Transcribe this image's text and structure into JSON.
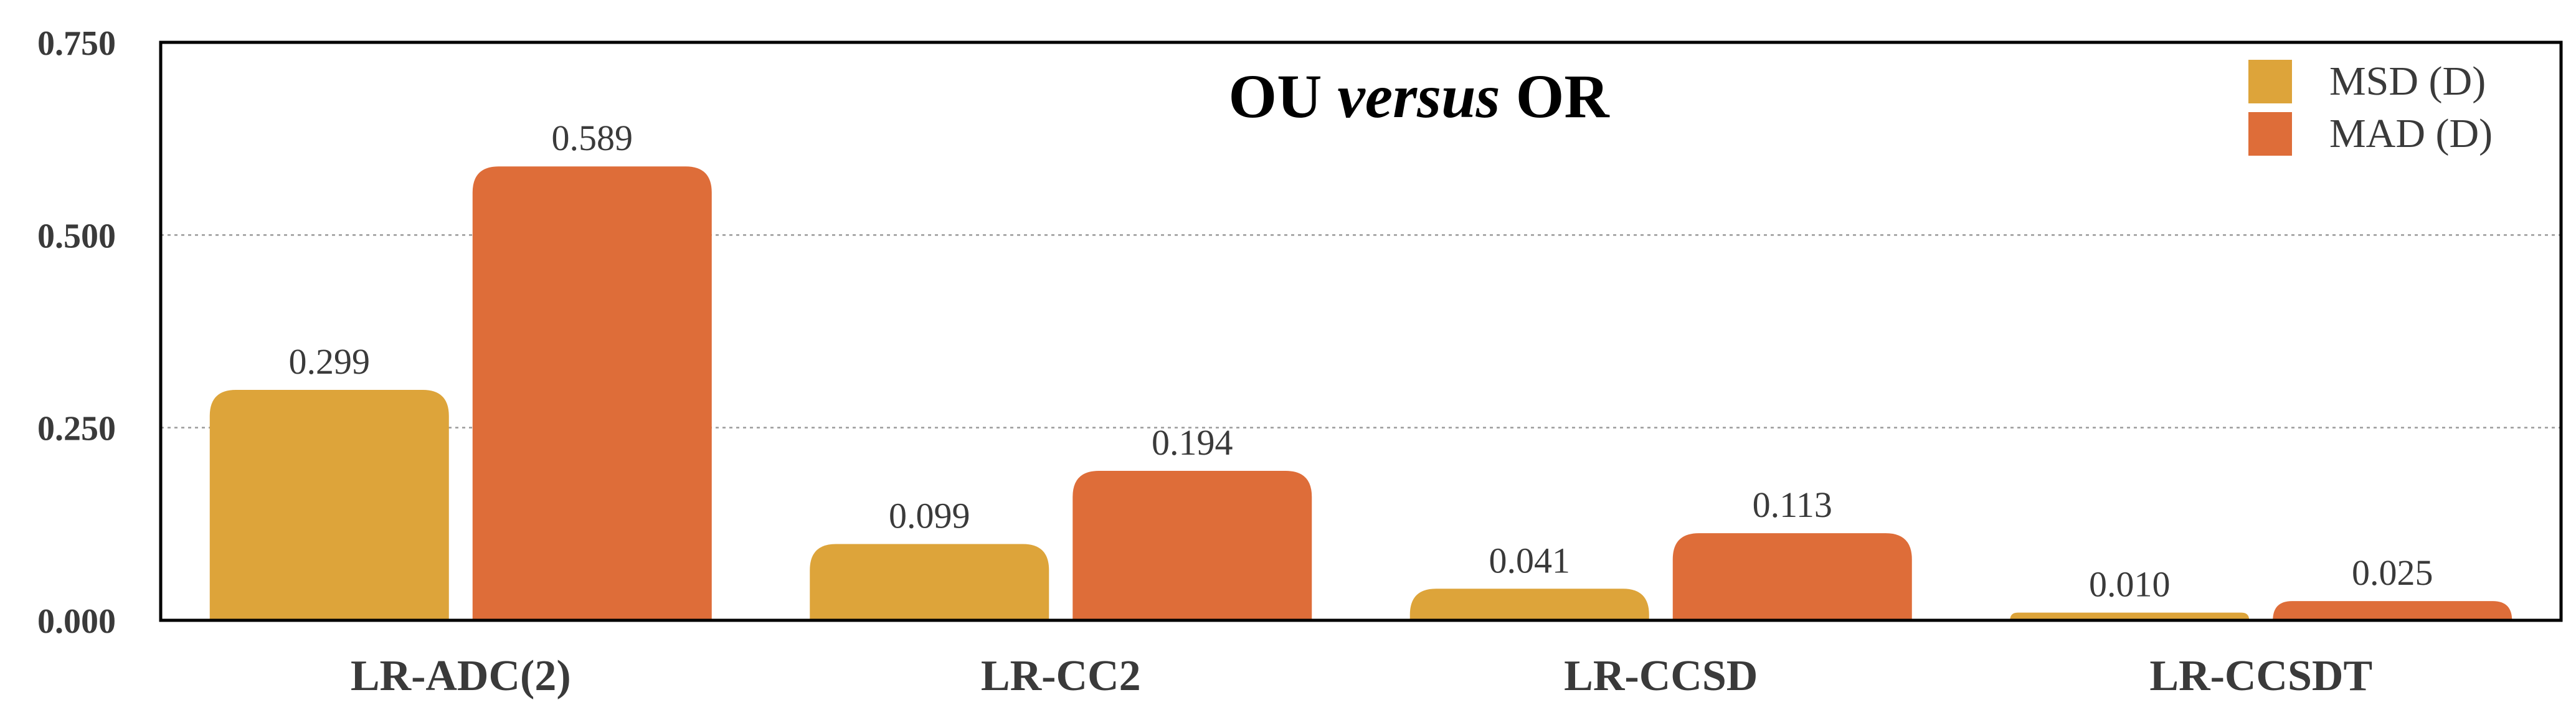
{
  "chart_data": {
    "type": "bar",
    "title": {
      "parts": [
        {
          "text": "OU ",
          "italic": false
        },
        {
          "text": "versus",
          "italic": true
        },
        {
          "text": " OR",
          "italic": false
        }
      ]
    },
    "categories": [
      "LR-ADC(2)",
      "LR-CC2",
      "LR-CCSD",
      "LR-CCSDT"
    ],
    "series": [
      {
        "name": "MSD (D)",
        "color": "#DDA43A",
        "values": [
          0.299,
          0.099,
          0.041,
          0.01
        ],
        "labels": [
          "0.299",
          "0.099",
          "0.041",
          "0.010"
        ]
      },
      {
        "name": "MAD (D)",
        "color": "#DE6D39",
        "values": [
          0.589,
          0.194,
          0.113,
          0.025
        ],
        "labels": [
          "0.589",
          "0.194",
          "0.113",
          "0.025"
        ]
      }
    ],
    "ylim": [
      0,
      0.75
    ],
    "yticks": [
      0,
      0.25,
      0.5,
      0.75
    ],
    "ytick_labels": [
      "0.000",
      "0.250",
      "0.500",
      "0.750"
    ],
    "xlabel": "",
    "ylabel": "",
    "grid": "horizontal-dotted",
    "legend_position": "top-right"
  }
}
